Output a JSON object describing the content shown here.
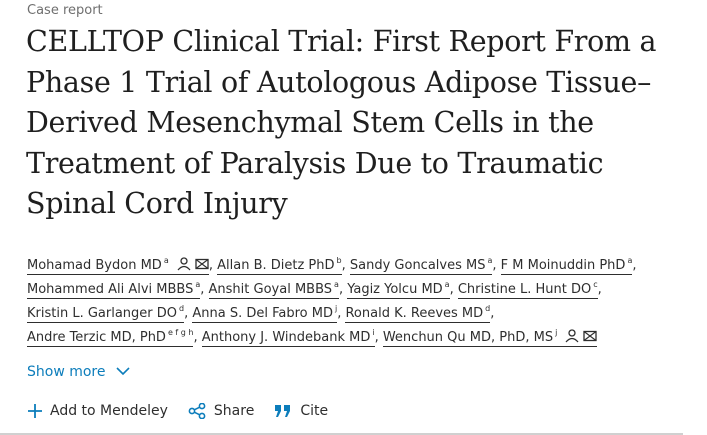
{
  "article_type": "Case report",
  "title": "CELLTOP Clinical Trial: First Report From a Phase 1 Trial of Autologous Adipose Tissue–Derived Mesenchymal Stem Cells in the Treatment of Paralysis Due to Traumatic Spinal Cord Injury",
  "author_lines": [
    [
      {
        "name": "Mohamad Bydon MD",
        "sup": "a",
        "icons": true
      },
      {
        "name": "Allan B. Dietz PhD",
        "sup": "b"
      },
      {
        "name": "Sandy Goncalves MS",
        "sup": "a"
      },
      {
        "name": "F M Moinuddin PhD",
        "sup": "a"
      }
    ],
    [
      {
        "name": "Mohammed Ali Alvi MBBS",
        "sup": "a"
      },
      {
        "name": "Anshit Goyal MBBS",
        "sup": "a"
      },
      {
        "name": "Yagiz Yolcu MD",
        "sup": "a"
      },
      {
        "name": "Christine L. Hunt DO",
        "sup": "c"
      }
    ],
    [
      {
        "name": "Kristin L. Garlanger DO",
        "sup": "d"
      },
      {
        "name": "Anna S. Del Fabro MD",
        "sup": "j"
      },
      {
        "name": "Ronald K. Reeves MD",
        "sup": "d"
      }
    ],
    [
      {
        "name": "Andre Terzic MD, PhD",
        "sup": "e f g h"
      },
      {
        "name": "Anthony J. Windebank MD",
        "sup": "i"
      },
      {
        "name": "Wenchun Qu MD, PhD, MS",
        "sup": "j",
        "icons": true
      }
    ]
  ],
  "show_more": "Show more",
  "actions": {
    "mendeley": "Add to Mendeley",
    "share": "Share",
    "cite": "Cite"
  },
  "colors": {
    "link": "#0c7dbb",
    "text": "#2e2e2e"
  }
}
